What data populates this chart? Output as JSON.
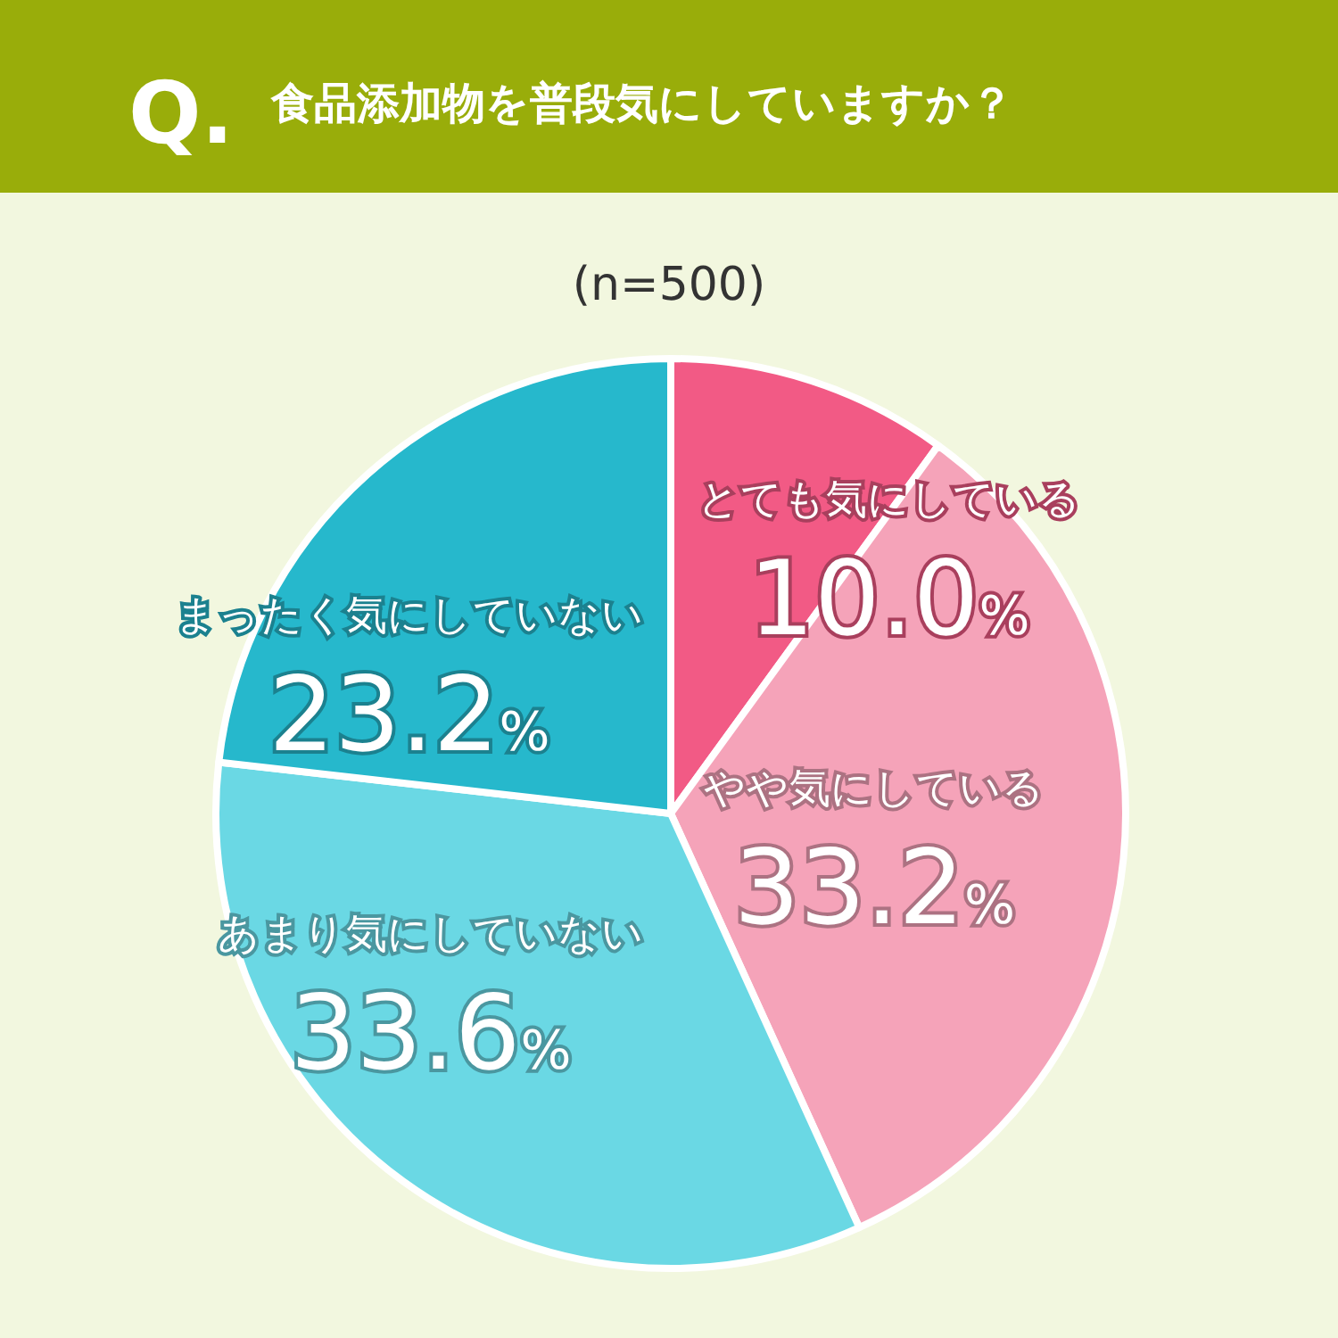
{
  "chart_data": {
    "type": "pie",
    "title": "食品添加物を普段気にしていますか？",
    "subtitle": "(n=500)",
    "annotations": [
      "Q."
    ],
    "categories": [
      "とても気にしている",
      "やや気にしている",
      "あまり気にしていない",
      "まったく気にしていない"
    ],
    "values": [
      10.0,
      33.2,
      33.6,
      23.2
    ],
    "colors": [
      "#f25a85",
      "#f5a3b9",
      "#6ad8e4",
      "#26b8cc"
    ],
    "value_labels": [
      "10.0%",
      "33.2%",
      "33.6%",
      "23.2%"
    ]
  }
}
